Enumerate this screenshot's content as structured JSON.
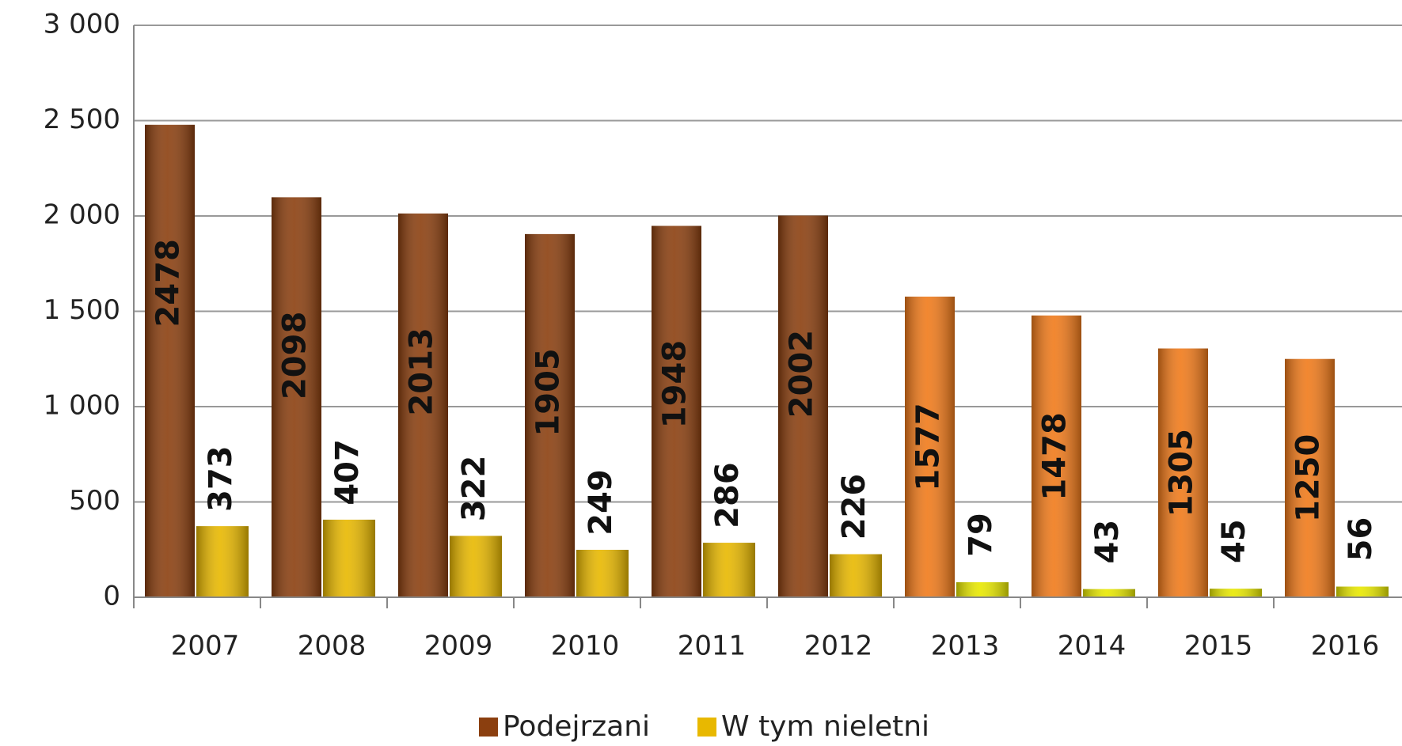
{
  "chart_data": {
    "type": "bar",
    "categories": [
      "2007",
      "2008",
      "2009",
      "2010",
      "2011",
      "2012",
      "2013",
      "2014",
      "2015",
      "2016"
    ],
    "series": [
      {
        "name": "Podejrzani",
        "color": "#8b3f0f",
        "colors": [
          "#8b3f0f",
          "#8b3f0f",
          "#8b3f0f",
          "#8b3f0f",
          "#8b3f0f",
          "#8b3f0f",
          "#f07a1a",
          "#f07a1a",
          "#f07a1a",
          "#f07a1a"
        ],
        "values": [
          2478,
          2098,
          2013,
          1905,
          1948,
          2002,
          1577,
          1478,
          1305,
          1250
        ]
      },
      {
        "name": "W tym nieletni",
        "color": "#e8b800",
        "colors": [
          "#e8b800",
          "#e8b800",
          "#e8b800",
          "#e8b800",
          "#e8b800",
          "#e8b800",
          "#e8e800",
          "#e8e800",
          "#e8e800",
          "#e8e800"
        ],
        "values": [
          373,
          407,
          322,
          249,
          286,
          226,
          79,
          43,
          45,
          56
        ]
      }
    ],
    "ylim": [
      0,
      3000
    ],
    "yticks": [
      0,
      500,
      {
        "value": 1000,
        "label": "1 000"
      },
      {
        "value": 1500,
        "label": "1 500"
      },
      {
        "value": 2000,
        "label": "2 000"
      },
      {
        "value": 2500,
        "label": "2 500"
      },
      {
        "value": 3000,
        "label": "3 000"
      }
    ],
    "grid": true,
    "legend": "bottom"
  }
}
